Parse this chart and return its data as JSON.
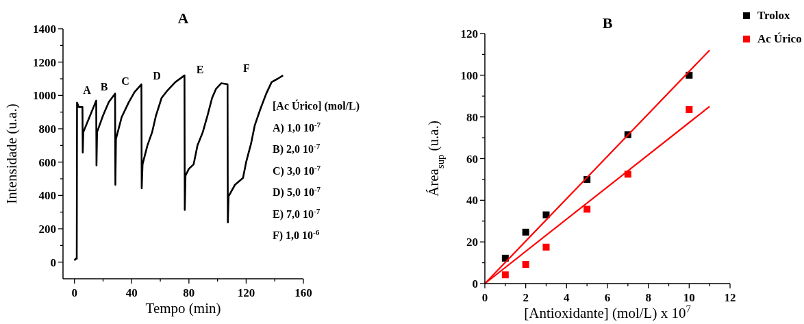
{
  "chart_data": [
    {
      "type": "line",
      "title": "A",
      "xlabel": "Tempo (min)",
      "ylabel": "Intensidade (u.a.)",
      "xlim": [
        -8,
        160
      ],
      "xticks": [
        0,
        {
          "value": 20,
          "label": null
        },
        40,
        {
          "value": 60,
          "label": null
        },
        80,
        {
          "value": 100,
          "label": null
        },
        120,
        {
          "value": 140,
          "label": null
        },
        160
      ],
      "ylim": [
        -100,
        1400
      ],
      "yticks": [
        0,
        {
          "value": 100,
          "label": null
        },
        200,
        {
          "value": 300,
          "label": null
        },
        400,
        {
          "value": 500,
          "label": null
        },
        600,
        {
          "value": 700,
          "label": null
        },
        800,
        {
          "value": 900,
          "label": null
        },
        1000,
        {
          "value": 1100,
          "label": null
        },
        1200,
        {
          "value": 1300,
          "label": null
        },
        1400
      ],
      "series": [
        {
          "color": "#000000",
          "x": [
            0,
            0.8,
            1.6,
            1.8,
            3,
            5.6,
            5.8,
            6.2,
            10,
            15.2,
            15.4,
            15.8,
            20,
            24,
            28.4,
            28.6,
            29,
            33,
            38,
            42,
            46.8,
            47,
            47.6,
            51,
            54.3,
            57,
            60.9,
            65,
            70.5,
            76.9,
            77.1,
            77.6,
            80,
            83.3,
            86,
            89.7,
            93,
            96.2,
            99,
            102.6,
            107,
            107.2,
            107.7,
            112.2,
            117.8,
            120,
            123.4,
            126,
            129.8,
            134,
            137.8,
            142,
            145.8
          ],
          "values": [
            10,
            20,
            20,
            957,
            930,
            930,
            657,
            780,
            860,
            969,
            580,
            780,
            880,
            960,
            1011,
            464,
            739,
            870,
            960,
            1020,
            1067,
            443,
            587,
            700,
            780,
            880,
            985,
            1030,
            1080,
            1120,
            313,
            519,
            560,
            587,
            700,
            780,
            880,
            985,
            1040,
            1073,
            1067,
            238,
            395,
            464,
            505,
            600,
            710,
            820,
            915,
            1010,
            1080,
            1100,
            1120
          ]
        }
      ],
      "annotations": [
        "A",
        "B",
        "C",
        "D",
        "E",
        "F",
        "[Ac Úrico] (mol/L)",
        "A) 1,0 10$^{-7}$",
        "B) 2,0 10$^{-7}$",
        "C) 3,0 10$^{-7}$",
        "D) 5,0 10$^{-7}$",
        "E) 7,0 10$^{-7}$",
        "F) 1,0 10$^{-6}$"
      ]
    },
    {
      "type": "scatter",
      "title": "B",
      "xlabel": "[Antioxidante] (mol/L) x 10$^{7}$",
      "ylabel": "Área$_{sup}$ (u.a.)",
      "xlim": [
        0,
        12
      ],
      "xticks": [
        0,
        {
          "value": 1,
          "label": null
        },
        2,
        {
          "value": 3,
          "label": null
        },
        4,
        {
          "value": 5,
          "label": null
        },
        6,
        {
          "value": 7,
          "label": null
        },
        8,
        {
          "value": 9,
          "label": null
        },
        10,
        {
          "value": 11,
          "label": null
        },
        12
      ],
      "ylim": [
        0,
        120
      ],
      "yticks": [
        0,
        {
          "value": 10,
          "label": null
        },
        20,
        {
          "value": 30,
          "label": null
        },
        40,
        {
          "value": 50,
          "label": null
        },
        60,
        {
          "value": 70,
          "label": null
        },
        80,
        {
          "value": 90,
          "label": null
        },
        100,
        {
          "value": 110,
          "label": null
        },
        120
      ],
      "legend": "top right",
      "series": [
        {
          "name": "Trolox",
          "color": "#000000",
          "marker": "square",
          "x": [
            1,
            2,
            3,
            5,
            7,
            10
          ],
          "values": [
            12.2,
            24.7,
            33,
            50,
            71.5,
            100
          ]
        },
        {
          "name": "Ac Úrico",
          "color": "#ff0000",
          "marker": "square",
          "x": [
            1,
            2,
            3,
            5,
            7,
            10
          ],
          "values": [
            4.2,
            9.2,
            17.5,
            35.7,
            52.5,
            83.5
          ]
        },
        {
          "type": "line",
          "color": "#ff0000",
          "x": [
            0,
            11
          ],
          "values": [
            0,
            112
          ]
        },
        {
          "type": "line",
          "color": "#ff0000",
          "x": [
            0,
            11
          ],
          "values": [
            0,
            85
          ]
        }
      ]
    }
  ]
}
